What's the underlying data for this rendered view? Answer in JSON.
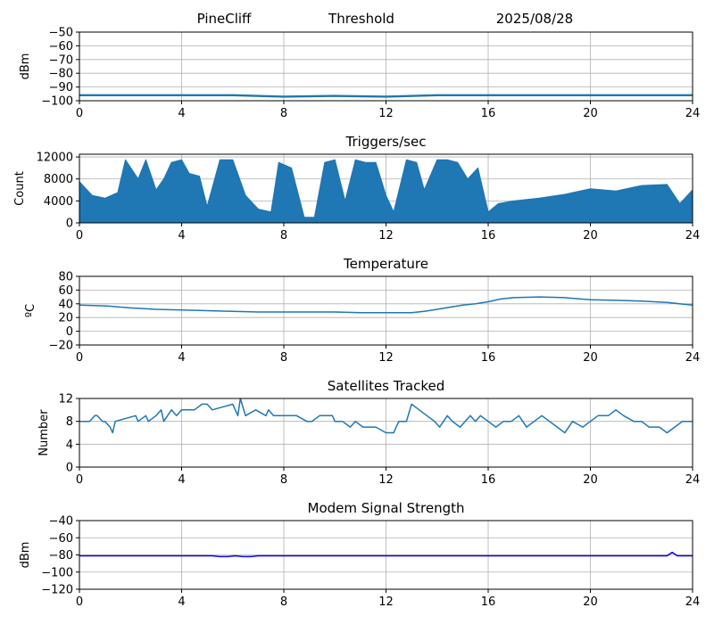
{
  "header": {
    "station": "PineCliff",
    "mode": "Threshold",
    "date": "2025/08/28"
  },
  "colors": {
    "series": "#1f77b4",
    "modem": "#0000ff",
    "grid": "#b0b0b0"
  },
  "chart_data": [
    {
      "type": "line",
      "title": "",
      "xlabel": "",
      "ylabel": "dBm",
      "xlim": [
        0,
        24
      ],
      "ylim": [
        -100,
        -50
      ],
      "x_ticks": [
        0,
        4,
        8,
        12,
        16,
        20,
        24
      ],
      "y_ticks": [
        -50,
        -60,
        -70,
        -80,
        -90,
        -100
      ],
      "y_tick_labels": [
        "−50",
        "−60",
        "−70",
        "−80",
        "−90",
        "−100"
      ],
      "grid": true,
      "series": [
        {
          "x": [
            0,
            2,
            4,
            6,
            8,
            10,
            12,
            14,
            16,
            18,
            20,
            22,
            24
          ],
          "y": [
            -96,
            -96,
            -96,
            -96,
            -97,
            -96.5,
            -97,
            -96,
            -96,
            -96,
            -96,
            -96,
            -96
          ]
        }
      ]
    },
    {
      "type": "area",
      "title": "Triggers/sec",
      "xlabel": "",
      "ylabel": "Count",
      "xlim": [
        0,
        24
      ],
      "ylim": [
        0,
        12500
      ],
      "x_ticks": [
        0,
        4,
        8,
        12,
        16,
        20,
        24
      ],
      "y_ticks": [
        0,
        4000,
        8000,
        12000
      ],
      "y_tick_labels": [
        "0",
        "4000",
        "8000",
        "12000"
      ],
      "grid": true,
      "series": [
        {
          "x": [
            0,
            0.5,
            1,
            1.5,
            1.8,
            2.3,
            2.6,
            3,
            3.3,
            3.6,
            4,
            4.3,
            4.7,
            5,
            5.5,
            6,
            6.5,
            7,
            7.5,
            7.8,
            8.3,
            8.8,
            9.2,
            9.6,
            10,
            10.4,
            10.8,
            11.2,
            11.6,
            12,
            12.3,
            12.8,
            13.2,
            13.5,
            14,
            14.4,
            14.8,
            15.2,
            15.6,
            16,
            16.4,
            17,
            18,
            19,
            20,
            21,
            22,
            23,
            23.5,
            24
          ],
          "y": [
            7500,
            5000,
            4500,
            5500,
            11500,
            8000,
            11500,
            6000,
            8000,
            11000,
            11500,
            9000,
            8500,
            3000,
            11500,
            11500,
            5000,
            2500,
            2000,
            11000,
            10000,
            1000,
            1000,
            11000,
            11500,
            4000,
            11500,
            11000,
            11000,
            5000,
            2000,
            11500,
            11000,
            6000,
            11500,
            11500,
            11000,
            8000,
            10000,
            2000,
            3500,
            4000,
            4500,
            5200,
            6200,
            5800,
            6800,
            7000,
            3500,
            6000
          ]
        }
      ]
    },
    {
      "type": "line",
      "title": "Temperature",
      "xlabel": "",
      "ylabel": "ºC",
      "xlim": [
        0,
        24
      ],
      "ylim": [
        -20,
        80
      ],
      "x_ticks": [
        0,
        4,
        8,
        12,
        16,
        20,
        24
      ],
      "y_ticks": [
        -20,
        0,
        20,
        40,
        60,
        80
      ],
      "y_tick_labels": [
        "−20",
        "0",
        "20",
        "40",
        "60",
        "80"
      ],
      "grid": true,
      "series": [
        {
          "x": [
            0,
            1,
            2,
            3,
            4,
            5,
            6,
            7,
            8,
            9,
            10,
            11,
            12,
            12.5,
            13,
            13.5,
            14,
            14.5,
            15,
            15.5,
            16,
            16.5,
            17,
            18,
            19,
            20,
            21,
            22,
            23,
            24
          ],
          "y": [
            38,
            37,
            34,
            32,
            31,
            30,
            29,
            28,
            28,
            28,
            28,
            27,
            27,
            27,
            27,
            29,
            32,
            35,
            38,
            40,
            43,
            47,
            49,
            50,
            49,
            46,
            45,
            44,
            42,
            38
          ]
        }
      ]
    },
    {
      "type": "line",
      "title": "Satellites Tracked",
      "xlabel": "",
      "ylabel": "Number",
      "xlim": [
        0,
        24
      ],
      "ylim": [
        0,
        12
      ],
      "x_ticks": [
        0,
        4,
        8,
        12,
        16,
        20,
        24
      ],
      "y_ticks": [
        0,
        4,
        8,
        12
      ],
      "y_tick_labels": [
        "0",
        "4",
        "8",
        "12"
      ],
      "grid": true,
      "series": [
        {
          "x": [
            0,
            0.4,
            0.6,
            0.7,
            0.9,
            1.0,
            1.2,
            1.3,
            1.4,
            2.2,
            2.3,
            2.6,
            2.7,
            3.0,
            3.2,
            3.3,
            3.6,
            3.8,
            4.0,
            4.5,
            4.8,
            5.0,
            5.2,
            6.0,
            6.2,
            6.3,
            6.5,
            6.9,
            7.3,
            7.4,
            7.6,
            8.5,
            8.9,
            9.1,
            9.4,
            9.9,
            10.0,
            10.3,
            10.6,
            10.8,
            11.1,
            11.4,
            11.6,
            12.0,
            12.3,
            12.5,
            12.8,
            13.0,
            13.3,
            13.6,
            13.9,
            14.1,
            14.4,
            14.6,
            14.9,
            15.3,
            15.5,
            15.7,
            16.0,
            16.3,
            16.6,
            16.9,
            17.2,
            17.5,
            17.8,
            18.1,
            18.4,
            18.7,
            19.0,
            19.3,
            19.7,
            20.0,
            20.3,
            20.7,
            21.0,
            21.3,
            21.7,
            22.0,
            22.3,
            22.7,
            23.0,
            23.3,
            23.6,
            24
          ],
          "y": [
            8,
            8,
            9,
            9,
            8,
            8,
            7,
            6,
            8,
            9,
            8,
            9,
            8,
            9,
            10,
            8,
            10,
            9,
            10,
            10,
            11,
            11,
            10,
            11,
            9,
            12,
            9,
            10,
            9,
            10,
            9,
            9,
            8,
            8,
            9,
            9,
            8,
            8,
            7,
            8,
            7,
            7,
            7,
            6,
            6,
            8,
            8,
            11,
            10,
            9,
            8,
            7,
            9,
            8,
            7,
            9,
            8,
            9,
            8,
            7,
            8,
            8,
            9,
            7,
            8,
            9,
            8,
            7,
            6,
            8,
            7,
            8,
            9,
            9,
            10,
            9,
            8,
            8,
            7,
            7,
            6,
            7,
            8,
            8
          ]
        }
      ]
    },
    {
      "type": "line",
      "title": "Modem Signal Strength",
      "xlabel": "",
      "ylabel": "dBm",
      "xlim": [
        0,
        24
      ],
      "ylim": [
        -120,
        -40
      ],
      "x_ticks": [
        0,
        4,
        8,
        12,
        16,
        20,
        24
      ],
      "y_ticks": [
        -40,
        -60,
        -80,
        -100,
        -120
      ],
      "y_tick_labels": [
        "−40",
        "−60",
        "−80",
        "−100",
        "−120"
      ],
      "grid": true,
      "series": [
        {
          "x": [
            0,
            5.2,
            5.5,
            5.8,
            6.1,
            6.4,
            6.7,
            7.0,
            23.0,
            23.2,
            23.4,
            23.6,
            24
          ],
          "y": [
            -81,
            -81,
            -82,
            -82,
            -81,
            -82,
            -82,
            -81,
            -81,
            -77,
            -81,
            -81,
            -81
          ]
        }
      ]
    }
  ]
}
